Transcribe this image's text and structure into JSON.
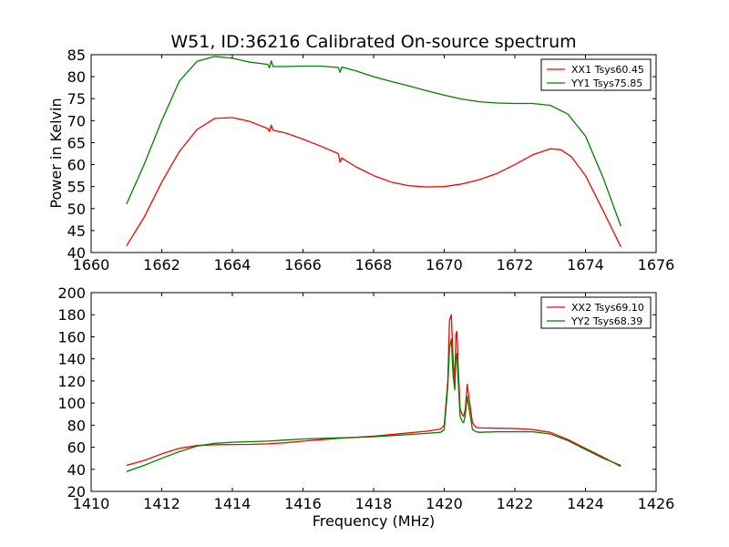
{
  "chart_data": [
    {
      "type": "line",
      "title": "W51, ID:36216 Calibrated On-source spectrum",
      "xlabel": "",
      "ylabel": "Power in Kelvin",
      "xlim": [
        1660,
        1676
      ],
      "ylim": [
        40,
        85
      ],
      "xticks": [
        1660,
        1662,
        1664,
        1666,
        1668,
        1670,
        1672,
        1674,
        1676
      ],
      "yticks": [
        40,
        45,
        50,
        55,
        60,
        65,
        70,
        75,
        80,
        85
      ],
      "grid": false,
      "legend_position": "top-right",
      "series": [
        {
          "name": "XX1 Tsys60.45",
          "color": "#ff0000",
          "points": [
            [
              1661.0,
              41.5
            ],
            [
              1661.5,
              48.0
            ],
            [
              1662.0,
              56.0
            ],
            [
              1662.5,
              63.0
            ],
            [
              1663.0,
              68.0
            ],
            [
              1663.5,
              70.5
            ],
            [
              1664.0,
              70.7
            ],
            [
              1664.5,
              69.8
            ],
            [
              1665.0,
              68.2
            ],
            [
              1665.05,
              67.5
            ],
            [
              1665.1,
              69.0
            ],
            [
              1665.15,
              67.8
            ],
            [
              1665.5,
              67.2
            ],
            [
              1666.0,
              65.8
            ],
            [
              1666.5,
              64.2
            ],
            [
              1667.0,
              62.5
            ],
            [
              1667.05,
              60.5
            ],
            [
              1667.1,
              61.5
            ],
            [
              1667.5,
              59.5
            ],
            [
              1668.0,
              57.5
            ],
            [
              1668.5,
              56.0
            ],
            [
              1669.0,
              55.2
            ],
            [
              1669.5,
              54.9
            ],
            [
              1670.0,
              55.0
            ],
            [
              1670.5,
              55.6
            ],
            [
              1671.0,
              56.6
            ],
            [
              1671.5,
              58.0
            ],
            [
              1672.0,
              60.0
            ],
            [
              1672.5,
              62.2
            ],
            [
              1673.0,
              63.6
            ],
            [
              1673.3,
              63.4
            ],
            [
              1673.6,
              61.8
            ],
            [
              1674.0,
              57.5
            ],
            [
              1674.5,
              49.5
            ],
            [
              1675.0,
              41.3
            ]
          ]
        },
        {
          "name": "YY1 Tsys75.85",
          "color": "#008000",
          "points": [
            [
              1661.0,
              51.0
            ],
            [
              1661.5,
              60.0
            ],
            [
              1662.0,
              70.0
            ],
            [
              1662.5,
              79.0
            ],
            [
              1663.0,
              83.5
            ],
            [
              1663.5,
              84.6
            ],
            [
              1664.0,
              84.2
            ],
            [
              1664.5,
              83.3
            ],
            [
              1665.0,
              82.8
            ],
            [
              1665.05,
              82.0
            ],
            [
              1665.1,
              83.6
            ],
            [
              1665.15,
              82.3
            ],
            [
              1665.5,
              82.3
            ],
            [
              1666.0,
              82.4
            ],
            [
              1666.5,
              82.4
            ],
            [
              1667.0,
              82.1
            ],
            [
              1667.05,
              81.0
            ],
            [
              1667.1,
              82.2
            ],
            [
              1667.5,
              81.3
            ],
            [
              1668.0,
              80.0
            ],
            [
              1668.5,
              78.9
            ],
            [
              1669.0,
              77.9
            ],
            [
              1669.5,
              76.8
            ],
            [
              1670.0,
              75.8
            ],
            [
              1670.5,
              74.9
            ],
            [
              1671.0,
              74.3
            ],
            [
              1671.5,
              74.0
            ],
            [
              1672.0,
              73.9
            ],
            [
              1672.5,
              73.9
            ],
            [
              1673.0,
              73.5
            ],
            [
              1673.5,
              71.5
            ],
            [
              1674.0,
              66.5
            ],
            [
              1674.5,
              57.0
            ],
            [
              1675.0,
              46.0
            ]
          ]
        }
      ]
    },
    {
      "type": "line",
      "title": "",
      "xlabel": "Frequency (MHz)",
      "ylabel": "",
      "xlim": [
        1410,
        1426
      ],
      "ylim": [
        20,
        200
      ],
      "xticks": [
        1410,
        1412,
        1414,
        1416,
        1418,
        1420,
        1422,
        1424,
        1426
      ],
      "yticks": [
        20,
        40,
        60,
        80,
        100,
        120,
        140,
        160,
        180,
        200
      ],
      "grid": false,
      "legend_position": "top-right",
      "series": [
        {
          "name": "XX2 Tsys69.10",
          "color": "#ff0000",
          "points": [
            [
              1411.0,
              43.5
            ],
            [
              1411.5,
              48.0
            ],
            [
              1412.0,
              54.0
            ],
            [
              1412.5,
              59.0
            ],
            [
              1413.0,
              61.5
            ],
            [
              1413.5,
              62.3
            ],
            [
              1414.0,
              62.4
            ],
            [
              1414.5,
              62.5
            ],
            [
              1415.0,
              63.0
            ],
            [
              1415.5,
              64.0
            ],
            [
              1416.0,
              65.5
            ],
            [
              1416.5,
              66.8
            ],
            [
              1417.0,
              68.0
            ],
            [
              1417.5,
              69.0
            ],
            [
              1418.0,
              70.0
            ],
            [
              1418.5,
              71.5
            ],
            [
              1419.0,
              73.0
            ],
            [
              1419.5,
              74.5
            ],
            [
              1419.9,
              76.5
            ],
            [
              1420.0,
              80.0
            ],
            [
              1420.1,
              120.0
            ],
            [
              1420.15,
              175.0
            ],
            [
              1420.2,
              180.0
            ],
            [
              1420.25,
              140.0
            ],
            [
              1420.3,
              120.0
            ],
            [
              1420.33,
              162.0
            ],
            [
              1420.36,
              165.0
            ],
            [
              1420.4,
              130.0
            ],
            [
              1420.45,
              95.0
            ],
            [
              1420.5,
              90.0
            ],
            [
              1420.55,
              88.0
            ],
            [
              1420.6,
              95.0
            ],
            [
              1420.65,
              117.0
            ],
            [
              1420.7,
              105.0
            ],
            [
              1420.8,
              82.0
            ],
            [
              1420.9,
              78.0
            ],
            [
              1421.0,
              77.5
            ],
            [
              1421.5,
              77.2
            ],
            [
              1422.0,
              77.0
            ],
            [
              1422.5,
              76.0
            ],
            [
              1423.0,
              73.5
            ],
            [
              1423.5,
              67.0
            ],
            [
              1424.0,
              59.0
            ],
            [
              1424.5,
              51.0
            ],
            [
              1425.0,
              42.5
            ]
          ]
        },
        {
          "name": "YY2 Tsys68.39",
          "color": "#008000",
          "points": [
            [
              1411.0,
              38.0
            ],
            [
              1411.5,
              43.5
            ],
            [
              1412.0,
              50.0
            ],
            [
              1412.5,
              56.0
            ],
            [
              1413.0,
              61.0
            ],
            [
              1413.5,
              63.5
            ],
            [
              1414.0,
              64.5
            ],
            [
              1414.5,
              65.0
            ],
            [
              1415.0,
              65.5
            ],
            [
              1415.5,
              66.5
            ],
            [
              1416.0,
              67.5
            ],
            [
              1416.5,
              68.0
            ],
            [
              1417.0,
              68.5
            ],
            [
              1417.5,
              69.0
            ],
            [
              1418.0,
              69.5
            ],
            [
              1418.5,
              70.5
            ],
            [
              1419.0,
              71.5
            ],
            [
              1419.5,
              72.5
            ],
            [
              1419.9,
              73.5
            ],
            [
              1420.0,
              76.0
            ],
            [
              1420.1,
              115.0
            ],
            [
              1420.15,
              150.0
            ],
            [
              1420.2,
              158.0
            ],
            [
              1420.25,
              125.0
            ],
            [
              1420.3,
              112.0
            ],
            [
              1420.33,
              140.0
            ],
            [
              1420.36,
              145.0
            ],
            [
              1420.4,
              118.0
            ],
            [
              1420.45,
              88.0
            ],
            [
              1420.5,
              84.0
            ],
            [
              1420.55,
              82.0
            ],
            [
              1420.6,
              90.0
            ],
            [
              1420.65,
              106.0
            ],
            [
              1420.7,
              96.0
            ],
            [
              1420.8,
              76.0
            ],
            [
              1420.9,
              74.0
            ],
            [
              1421.0,
              73.5
            ],
            [
              1421.5,
              74.0
            ],
            [
              1422.0,
              74.0
            ],
            [
              1422.5,
              74.0
            ],
            [
              1423.0,
              72.0
            ],
            [
              1423.5,
              66.0
            ],
            [
              1424.0,
              58.0
            ],
            [
              1424.5,
              50.0
            ],
            [
              1425.0,
              43.5
            ]
          ]
        }
      ]
    }
  ]
}
